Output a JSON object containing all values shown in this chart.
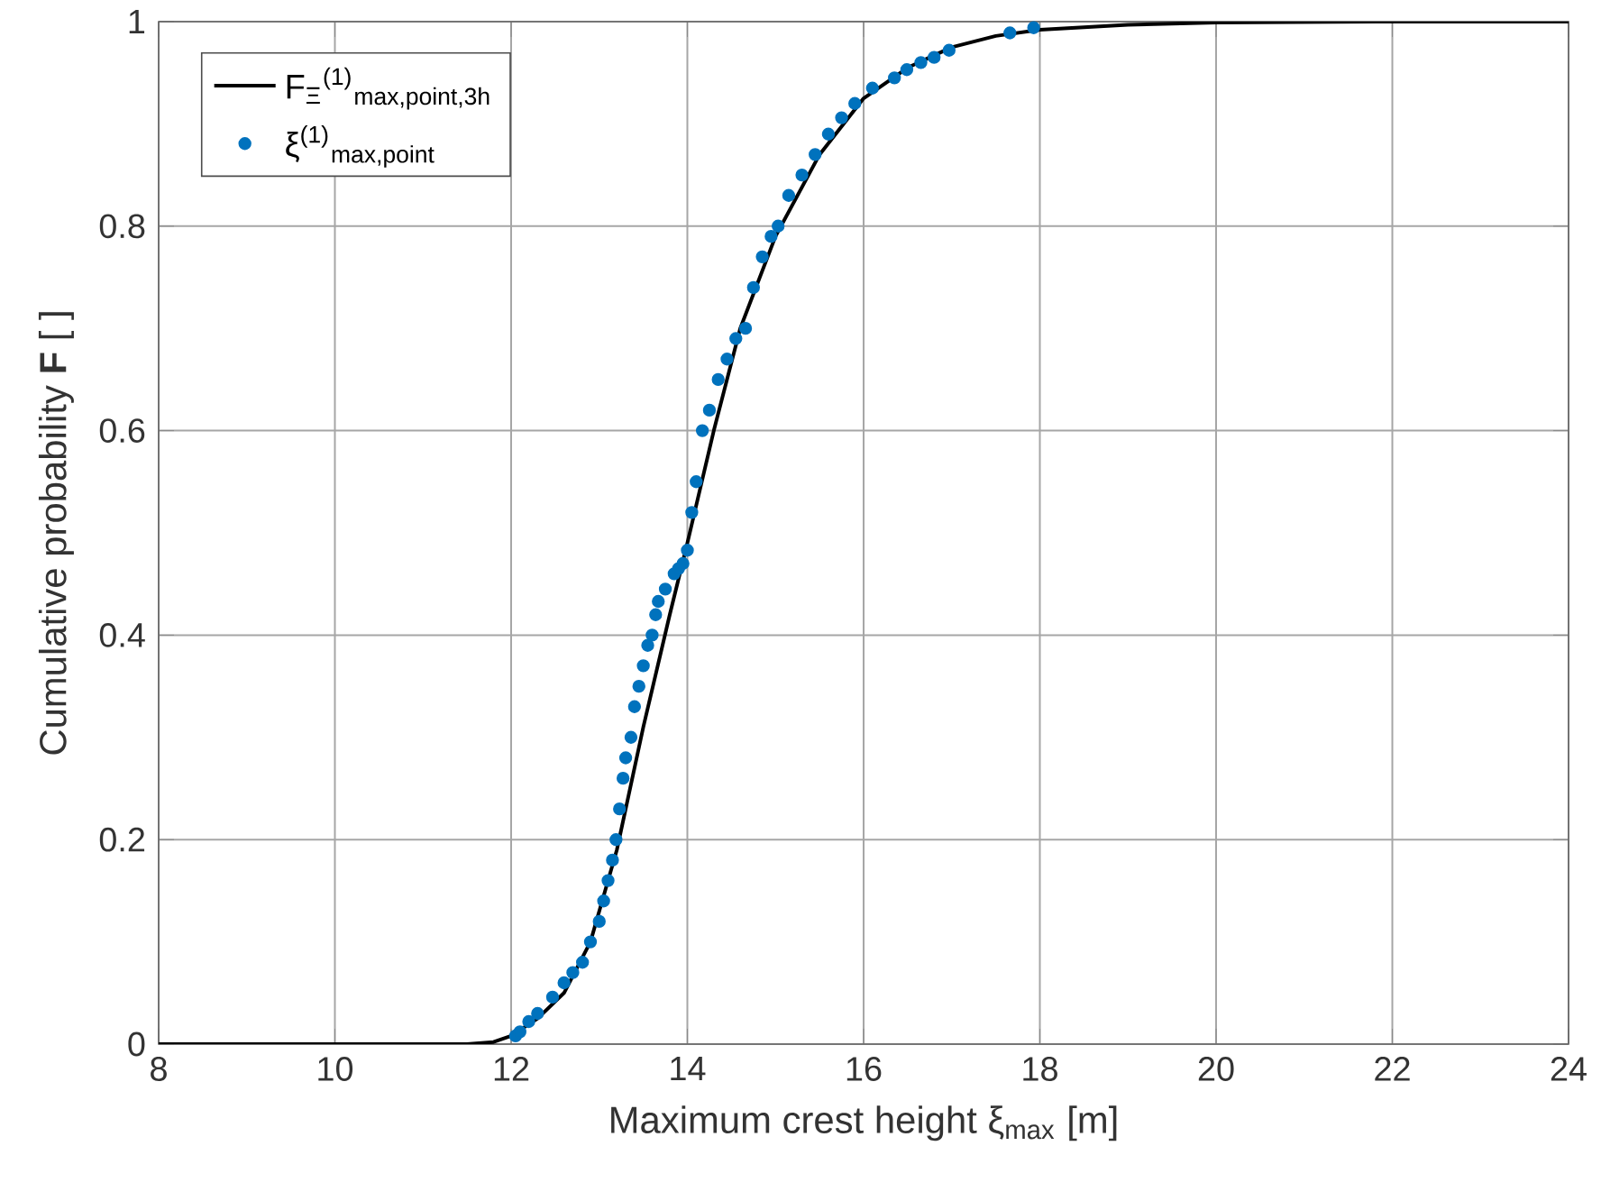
{
  "chart_data": {
    "type": "line",
    "xlabel": "Maximum crest height ξ$_{max}$ [m]",
    "ylabel": "Cumulative probability **F** [ ]",
    "xlim": [
      8,
      24
    ],
    "ylim": [
      0,
      1
    ],
    "xticks": [
      8,
      10,
      12,
      14,
      16,
      18,
      20,
      22,
      24
    ],
    "yticks": [
      0,
      0.2,
      0.4,
      0.6,
      0.8,
      1
    ],
    "grid": true,
    "legend": "top left",
    "series": [
      {
        "name": "F$_{Ξ}$$^{(1)}$$_{max,point,3h}$",
        "color": "#000000",
        "marker": "none",
        "line_style": "solid",
        "x": [
          8,
          9,
          10,
          11,
          11.5,
          11.8,
          12,
          12.3,
          12.6,
          12.9,
          13.2,
          13.5,
          13.8,
          14.0,
          14.3,
          14.6,
          15.0,
          15.5,
          16.0,
          16.5,
          17.0,
          17.5,
          18.0,
          19.0,
          20.0,
          22.0,
          24.0
        ],
        "values": [
          0,
          0,
          0,
          0,
          0,
          0.002,
          0.008,
          0.025,
          0.05,
          0.1,
          0.19,
          0.31,
          0.42,
          0.49,
          0.6,
          0.7,
          0.79,
          0.87,
          0.925,
          0.955,
          0.975,
          0.986,
          0.992,
          0.997,
          0.999,
          1,
          1
        ]
      },
      {
        "name": "ξ$^{(1)}$$_{max,point}$",
        "type": "scatter",
        "color": "#0072bd",
        "marker": "circle",
        "x": [
          12.05,
          12.1,
          12.2,
          12.3,
          12.47,
          12.6,
          12.7,
          12.81,
          12.9,
          13.0,
          13.05,
          13.1,
          13.15,
          13.19,
          13.23,
          13.27,
          13.3,
          13.36,
          13.4,
          13.45,
          13.5,
          13.55,
          13.6,
          13.64,
          13.67,
          13.75,
          13.85,
          13.9,
          13.95,
          14.0,
          14.05,
          14.1,
          14.17,
          14.25,
          14.35,
          14.45,
          14.55,
          14.66,
          14.75,
          14.85,
          14.95,
          15.03,
          15.15,
          15.3,
          15.45,
          15.6,
          15.75,
          15.9,
          16.1,
          16.35,
          16.49,
          16.65,
          16.8,
          16.97,
          17.66,
          17.93
        ],
        "values": [
          0.008,
          0.012,
          0.022,
          0.03,
          0.046,
          0.06,
          0.07,
          0.08,
          0.1,
          0.12,
          0.14,
          0.16,
          0.18,
          0.2,
          0.23,
          0.26,
          0.28,
          0.3,
          0.33,
          0.35,
          0.37,
          0.39,
          0.4,
          0.42,
          0.433,
          0.445,
          0.46,
          0.465,
          0.47,
          0.483,
          0.52,
          0.55,
          0.6,
          0.62,
          0.65,
          0.67,
          0.69,
          0.7,
          0.74,
          0.77,
          0.79,
          0.8,
          0.83,
          0.85,
          0.87,
          0.89,
          0.906,
          0.92,
          0.935,
          0.945,
          0.953,
          0.96,
          0.965,
          0.972,
          0.989,
          0.994
        ]
      }
    ]
  }
}
